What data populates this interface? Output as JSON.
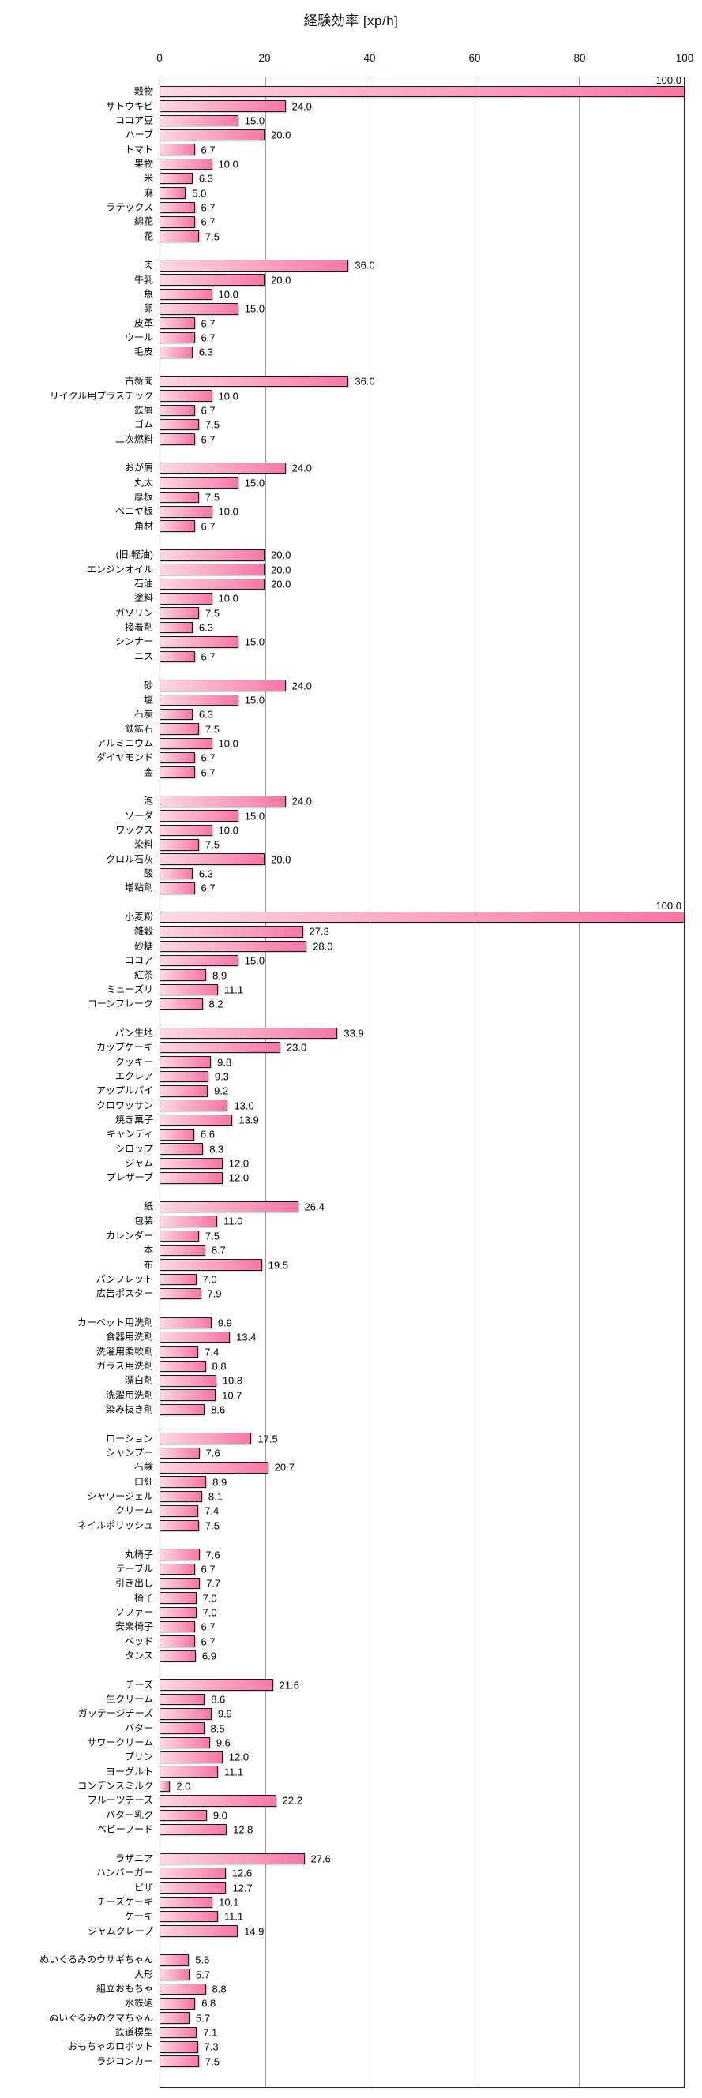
{
  "chart_data": {
    "type": "bar",
    "orientation": "horizontal",
    "title": "経験効率 [xp/h]",
    "xlabel": "経験効率 [xp/h]",
    "xlim": [
      0,
      100
    ],
    "xticks": [
      0,
      20,
      40,
      60,
      80,
      100
    ],
    "grid": true,
    "legend": "none",
    "bar_style": {
      "gradient_start": "#fcd8e2",
      "gradient_end": "#f876a8",
      "border": "#191919",
      "grid_color": "#9a9a9a",
      "axis_color": "#222222"
    },
    "groups": [
      {
        "items": [
          {
            "label": "穀物",
            "value": 100.0
          },
          {
            "label": "サトウキビ",
            "value": 24.0
          },
          {
            "label": "ココア豆",
            "value": 15.0
          },
          {
            "label": "ハーブ",
            "value": 20.0
          },
          {
            "label": "トマト",
            "value": 6.7
          },
          {
            "label": "果物",
            "value": 10.0
          },
          {
            "label": "米",
            "value": 6.3
          },
          {
            "label": "麻",
            "value": 5.0
          },
          {
            "label": "ラテックス",
            "value": 6.7
          },
          {
            "label": "綿花",
            "value": 6.7
          },
          {
            "label": "花",
            "value": 7.5
          }
        ]
      },
      {
        "items": [
          {
            "label": "肉",
            "value": 36.0
          },
          {
            "label": "牛乳",
            "value": 20.0
          },
          {
            "label": "魚",
            "value": 10.0
          },
          {
            "label": "卵",
            "value": 15.0
          },
          {
            "label": "皮革",
            "value": 6.7
          },
          {
            "label": "ウール",
            "value": 6.7
          },
          {
            "label": "毛皮",
            "value": 6.3
          }
        ]
      },
      {
        "items": [
          {
            "label": "古新聞",
            "value": 36.0
          },
          {
            "label": "リイクル用プラスチック",
            "value": 10.0
          },
          {
            "label": "鉄屑",
            "value": 6.7
          },
          {
            "label": "ゴム",
            "value": 7.5
          },
          {
            "label": "二次燃料",
            "value": 6.7
          }
        ]
      },
      {
        "items": [
          {
            "label": "おが屑",
            "value": 24.0
          },
          {
            "label": "丸太",
            "value": 15.0
          },
          {
            "label": "厚板",
            "value": 7.5
          },
          {
            "label": "ベニヤ板",
            "value": 10.0
          },
          {
            "label": "角材",
            "value": 6.7
          }
        ]
      },
      {
        "items": [
          {
            "label": "(旧:軽油)",
            "value": 20.0
          },
          {
            "label": "エンジンオイル",
            "value": 20.0
          },
          {
            "label": "石油",
            "value": 20.0
          },
          {
            "label": "塗料",
            "value": 10.0
          },
          {
            "label": "ガソリン",
            "value": 7.5
          },
          {
            "label": "接着剤",
            "value": 6.3
          },
          {
            "label": "シンナー",
            "value": 15.0
          },
          {
            "label": "ニス",
            "value": 6.7
          }
        ]
      },
      {
        "items": [
          {
            "label": "砂",
            "value": 24.0
          },
          {
            "label": "塩",
            "value": 15.0
          },
          {
            "label": "石炭",
            "value": 6.3
          },
          {
            "label": "鉄鉱石",
            "value": 7.5
          },
          {
            "label": "アルミニウム",
            "value": 10.0
          },
          {
            "label": "ダイヤモンド",
            "value": 6.7
          },
          {
            "label": "金",
            "value": 6.7
          }
        ]
      },
      {
        "items": [
          {
            "label": "泡",
            "value": 24.0
          },
          {
            "label": "ソーダ",
            "value": 15.0
          },
          {
            "label": "ワックス",
            "value": 10.0
          },
          {
            "label": "染料",
            "value": 7.5
          },
          {
            "label": "クロル石灰",
            "value": 20.0
          },
          {
            "label": "酸",
            "value": 6.3
          },
          {
            "label": "増粘剤",
            "value": 6.7
          }
        ]
      },
      {
        "items": [
          {
            "label": "小麦粉",
            "value": 100.0
          },
          {
            "label": "雑穀",
            "value": 27.3
          },
          {
            "label": "砂糖",
            "value": 28.0
          },
          {
            "label": "ココア",
            "value": 15.0
          },
          {
            "label": "紅茶",
            "value": 8.9
          },
          {
            "label": "ミューズリ",
            "value": 11.1
          },
          {
            "label": "コーンフレーク",
            "value": 8.2
          }
        ]
      },
      {
        "items": [
          {
            "label": "パン生地",
            "value": 33.9
          },
          {
            "label": "カップケーキ",
            "value": 23.0
          },
          {
            "label": "クッキー",
            "value": 9.8
          },
          {
            "label": "エクレア",
            "value": 9.3
          },
          {
            "label": "アップルパイ",
            "value": 9.2
          },
          {
            "label": "クロワッサン",
            "value": 13.0
          },
          {
            "label": "焼き菓子",
            "value": 13.9
          },
          {
            "label": "キャンディ",
            "value": 6.6
          },
          {
            "label": "シロップ",
            "value": 8.3
          },
          {
            "label": "ジャム",
            "value": 12.0
          },
          {
            "label": "プレザーブ",
            "value": 12.0
          }
        ]
      },
      {
        "items": [
          {
            "label": "紙",
            "value": 26.4
          },
          {
            "label": "包装",
            "value": 11.0
          },
          {
            "label": "カレンダー",
            "value": 7.5
          },
          {
            "label": "本",
            "value": 8.7
          },
          {
            "label": "布",
            "value": 19.5
          },
          {
            "label": "パンフレット",
            "value": 7.0
          },
          {
            "label": "広告ポスター",
            "value": 7.9
          }
        ]
      },
      {
        "items": [
          {
            "label": "カーペット用洗剤",
            "value": 9.9
          },
          {
            "label": "食器用洗剤",
            "value": 13.4
          },
          {
            "label": "洗濯用柔軟剤",
            "value": 7.4
          },
          {
            "label": "ガラス用洗剤",
            "value": 8.8
          },
          {
            "label": "漂白剤",
            "value": 10.8
          },
          {
            "label": "洗濯用洗剤",
            "value": 10.7
          },
          {
            "label": "染み抜き剤",
            "value": 8.6
          }
        ]
      },
      {
        "items": [
          {
            "label": "ローション",
            "value": 17.5
          },
          {
            "label": "シャンプー",
            "value": 7.6
          },
          {
            "label": "石鹸",
            "value": 20.7
          },
          {
            "label": "口紅",
            "value": 8.9
          },
          {
            "label": "シャワージェル",
            "value": 8.1
          },
          {
            "label": "クリーム",
            "value": 7.4
          },
          {
            "label": "ネイルポリッシュ",
            "value": 7.5
          }
        ]
      },
      {
        "items": [
          {
            "label": "丸椅子",
            "value": 7.6
          },
          {
            "label": "テーブル",
            "value": 6.7
          },
          {
            "label": "引き出し",
            "value": 7.7
          },
          {
            "label": "椅子",
            "value": 7.0
          },
          {
            "label": "ソファー",
            "value": 7.0
          },
          {
            "label": "安楽椅子",
            "value": 6.7
          },
          {
            "label": "ベッド",
            "value": 6.7
          },
          {
            "label": "タンス",
            "value": 6.9
          }
        ]
      },
      {
        "items": [
          {
            "label": "チーズ",
            "value": 21.6
          },
          {
            "label": "生クリーム",
            "value": 8.6
          },
          {
            "label": "ガッテージチーズ",
            "value": 9.9
          },
          {
            "label": "バター",
            "value": 8.5
          },
          {
            "label": "サワークリーム",
            "value": 9.6
          },
          {
            "label": "プリン",
            "value": 12.0
          },
          {
            "label": "ヨーグルト",
            "value": 11.1
          },
          {
            "label": "コンデンスミルク",
            "value": 2.0
          },
          {
            "label": "フルーツチーズ",
            "value": 22.2
          },
          {
            "label": "バター乳ク",
            "value": 9.0
          },
          {
            "label": "ベビーフード",
            "value": 12.8
          }
        ]
      },
      {
        "items": [
          {
            "label": "ラザニア",
            "value": 27.6
          },
          {
            "label": "ハンバーガー",
            "value": 12.6
          },
          {
            "label": "ピザ",
            "value": 12.7
          },
          {
            "label": "チーズケーキ",
            "value": 10.1
          },
          {
            "label": "ケーキ",
            "value": 11.1
          },
          {
            "label": "ジャムクレープ",
            "value": 14.9
          }
        ]
      },
      {
        "items": [
          {
            "label": "ぬいぐるみのウサギちゃん",
            "value": 5.6
          },
          {
            "label": "人形",
            "value": 5.7
          },
          {
            "label": "組立おもちゃ",
            "value": 8.8
          },
          {
            "label": "水鉄砲",
            "value": 6.8
          },
          {
            "label": "ぬいぐるみのクマちゃん",
            "value": 5.7
          },
          {
            "label": "鉄道模型",
            "value": 7.1
          },
          {
            "label": "おもちゃのロボット",
            "value": 7.3
          },
          {
            "label": "ラジコンカー",
            "value": 7.5
          }
        ]
      }
    ]
  }
}
